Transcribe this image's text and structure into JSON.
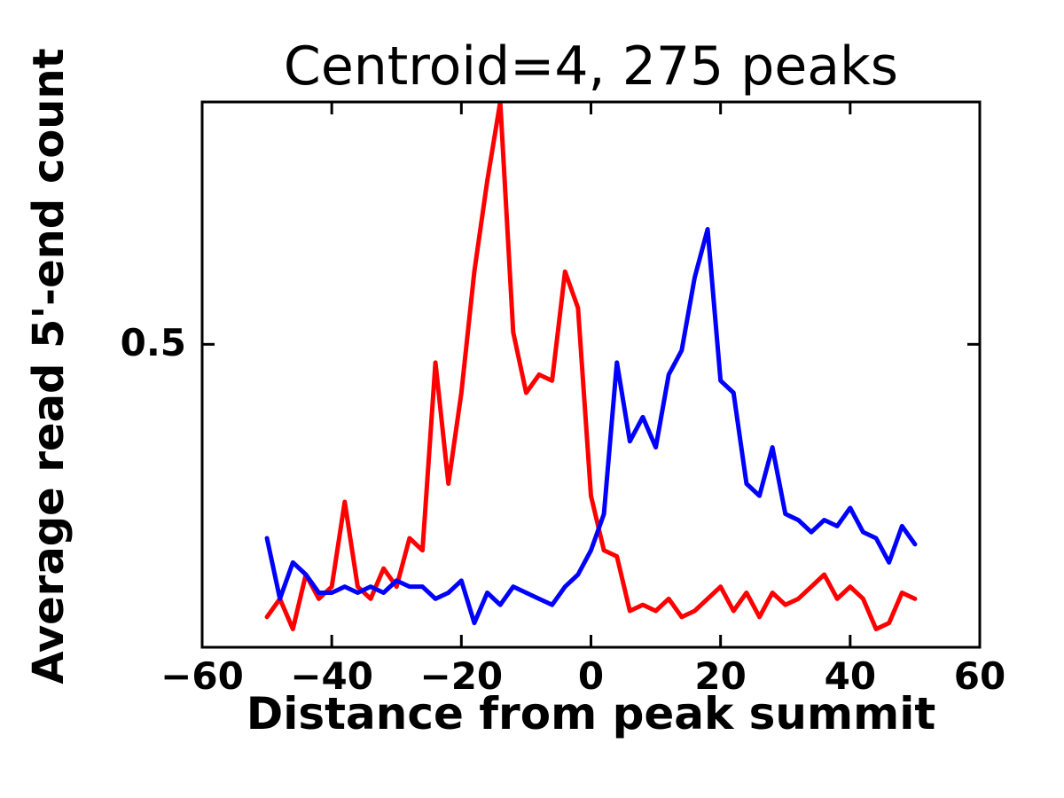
{
  "chart_data": {
    "type": "line",
    "title": "Centroid=4, 275 peaks",
    "xlabel": "Distance from peak summit",
    "ylabel": "Average read 5'-end count",
    "xlim": [
      -60,
      60
    ],
    "ylim": [
      0,
      0.9
    ],
    "xticks": [
      -60,
      -40,
      -20,
      0,
      20,
      40,
      60
    ],
    "xtick_labels": [
      "−60",
      "−40",
      "−20",
      "0",
      "20",
      "40",
      "60"
    ],
    "yticks": [
      0.5
    ],
    "ytick_labels": [
      "0.5"
    ],
    "grid": false,
    "legend": null,
    "axis_color": "#000000",
    "line_width": 5,
    "x": [
      -50,
      -48,
      -46,
      -44,
      -42,
      -40,
      -38,
      -36,
      -34,
      -32,
      -30,
      -28,
      -26,
      -24,
      -22,
      -20,
      -18,
      -16,
      -14,
      -12,
      -10,
      -8,
      -6,
      -4,
      -2,
      0,
      2,
      4,
      6,
      8,
      10,
      12,
      14,
      16,
      18,
      20,
      22,
      24,
      26,
      28,
      30,
      32,
      34,
      36,
      38,
      40,
      42,
      44,
      46,
      48,
      50
    ],
    "series": [
      {
        "name": "red",
        "color": "#ff0000",
        "values": [
          0.05,
          0.08,
          0.03,
          0.12,
          0.08,
          0.1,
          0.24,
          0.1,
          0.08,
          0.13,
          0.1,
          0.18,
          0.16,
          0.47,
          0.27,
          0.42,
          0.62,
          0.77,
          0.9,
          0.52,
          0.42,
          0.45,
          0.44,
          0.62,
          0.56,
          0.25,
          0.16,
          0.15,
          0.06,
          0.07,
          0.06,
          0.08,
          0.05,
          0.06,
          0.08,
          0.1,
          0.06,
          0.09,
          0.05,
          0.09,
          0.07,
          0.08,
          0.1,
          0.12,
          0.08,
          0.1,
          0.08,
          0.03,
          0.04,
          0.09,
          0.08
        ]
      },
      {
        "name": "blue",
        "color": "#0000ff",
        "values": [
          0.18,
          0.08,
          0.14,
          0.12,
          0.09,
          0.09,
          0.1,
          0.09,
          0.1,
          0.09,
          0.11,
          0.1,
          0.1,
          0.08,
          0.09,
          0.11,
          0.04,
          0.09,
          0.07,
          0.1,
          0.09,
          0.08,
          0.07,
          0.1,
          0.12,
          0.16,
          0.22,
          0.47,
          0.34,
          0.38,
          0.33,
          0.45,
          0.49,
          0.61,
          0.69,
          0.44,
          0.42,
          0.27,
          0.25,
          0.33,
          0.22,
          0.21,
          0.19,
          0.21,
          0.2,
          0.23,
          0.19,
          0.18,
          0.14,
          0.2,
          0.17
        ]
      }
    ]
  }
}
